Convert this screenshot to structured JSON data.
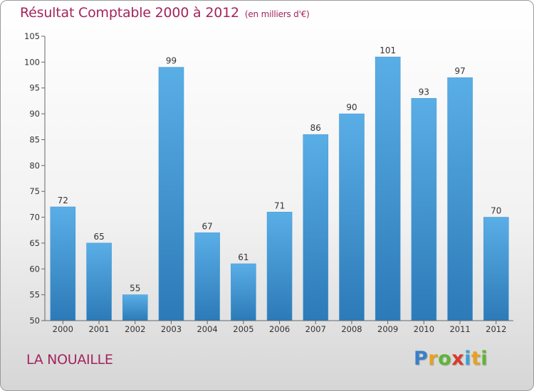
{
  "chart_data": {
    "type": "bar",
    "title": "Résultat Comptable 2000 à 2012",
    "subtitle": "(en milliers d'€)",
    "categories": [
      "2000",
      "2001",
      "2002",
      "2003",
      "2004",
      "2005",
      "2006",
      "2007",
      "2008",
      "2009",
      "2010",
      "2011",
      "2012"
    ],
    "values": [
      72,
      65,
      55,
      99,
      67,
      61,
      71,
      86,
      90,
      101,
      93,
      97,
      70
    ],
    "ylim": [
      50,
      105
    ],
    "yticks": [
      50,
      55,
      60,
      65,
      70,
      75,
      80,
      85,
      90,
      95,
      100,
      105
    ],
    "xlabel": "",
    "ylabel": "",
    "grid": false,
    "bar_color_top": "#5aaee6",
    "bar_color_bottom": "#2c7ab8"
  },
  "footer": {
    "commune": "LA NOUAILLE",
    "logo_letters": [
      "P",
      "r",
      "o",
      "x",
      "i",
      "t",
      "i"
    ],
    "logo_colors": [
      "#3a7fc9",
      "#e8a11f",
      "#5fb535",
      "#d93a2b",
      "#3a9fd9",
      "#e8a11f",
      "#5fb535"
    ]
  }
}
